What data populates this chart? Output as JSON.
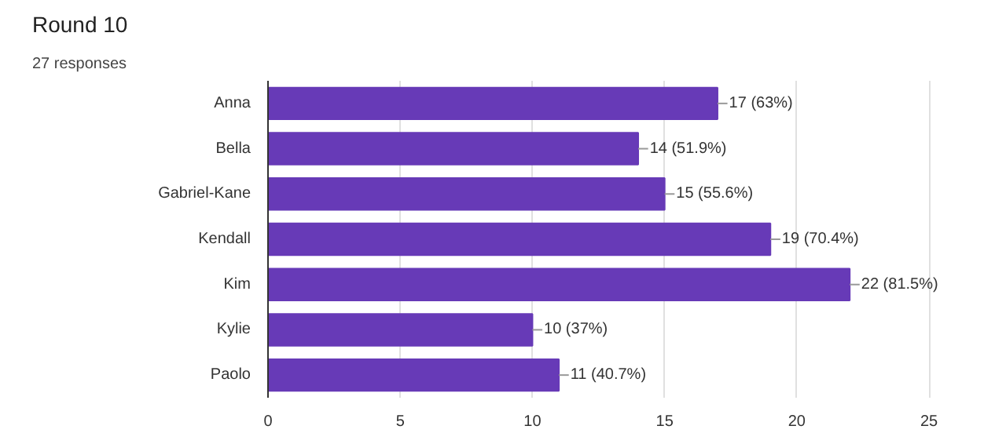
{
  "chart_data": {
    "type": "bar",
    "orientation": "horizontal",
    "title": "Round 10",
    "subtitle": "27 responses",
    "categories": [
      "Anna",
      "Bella",
      "Gabriel-Kane",
      "Kendall",
      "Kim",
      "Kylie",
      "Paolo"
    ],
    "values": [
      17,
      14,
      15,
      19,
      22,
      10,
      11
    ],
    "value_labels": [
      "17 (63%)",
      "14 (51.9%)",
      "15 (55.6%)",
      "19 (70.4%)",
      "22 (81.5%)",
      "10 (37%)",
      "11 (40.7%)"
    ],
    "color": "#673ab7",
    "xlim": [
      0,
      25
    ],
    "xticks": [
      0,
      5,
      10,
      15,
      20,
      25
    ],
    "grid": "x"
  }
}
